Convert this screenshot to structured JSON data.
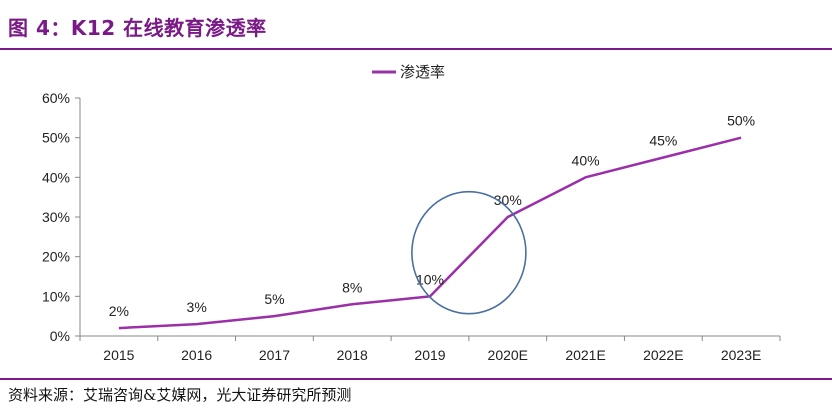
{
  "figure": {
    "title": "图 4：K12 在线教育渗透率",
    "source": "资料来源：艾瑞咨询&艾媒网，光大证券研究所预测"
  },
  "colors": {
    "series": "#9b2fa8",
    "accent": "#7a1a86",
    "circle": "#4a6fa0"
  },
  "chart_data": {
    "type": "line",
    "title": "",
    "xlabel": "",
    "ylabel": "",
    "categories": [
      "2015",
      "2016",
      "2017",
      "2018",
      "2019",
      "2020E",
      "2021E",
      "2022E",
      "2023E"
    ],
    "series": [
      {
        "name": "渗透率",
        "values": [
          2,
          3,
          5,
          8,
          10,
          30,
          40,
          45,
          50
        ],
        "labels": [
          "2%",
          "3%",
          "5%",
          "8%",
          "10%",
          "30%",
          "40%",
          "45%",
          "50%"
        ]
      }
    ],
    "ylim": [
      0,
      60
    ],
    "yticks": [
      "0%",
      "10%",
      "20%",
      "30%",
      "40%",
      "50%",
      "60%"
    ],
    "legend_position": "top-center",
    "grid": false,
    "annotation": "circle highlighting 2019–2020E jump"
  }
}
